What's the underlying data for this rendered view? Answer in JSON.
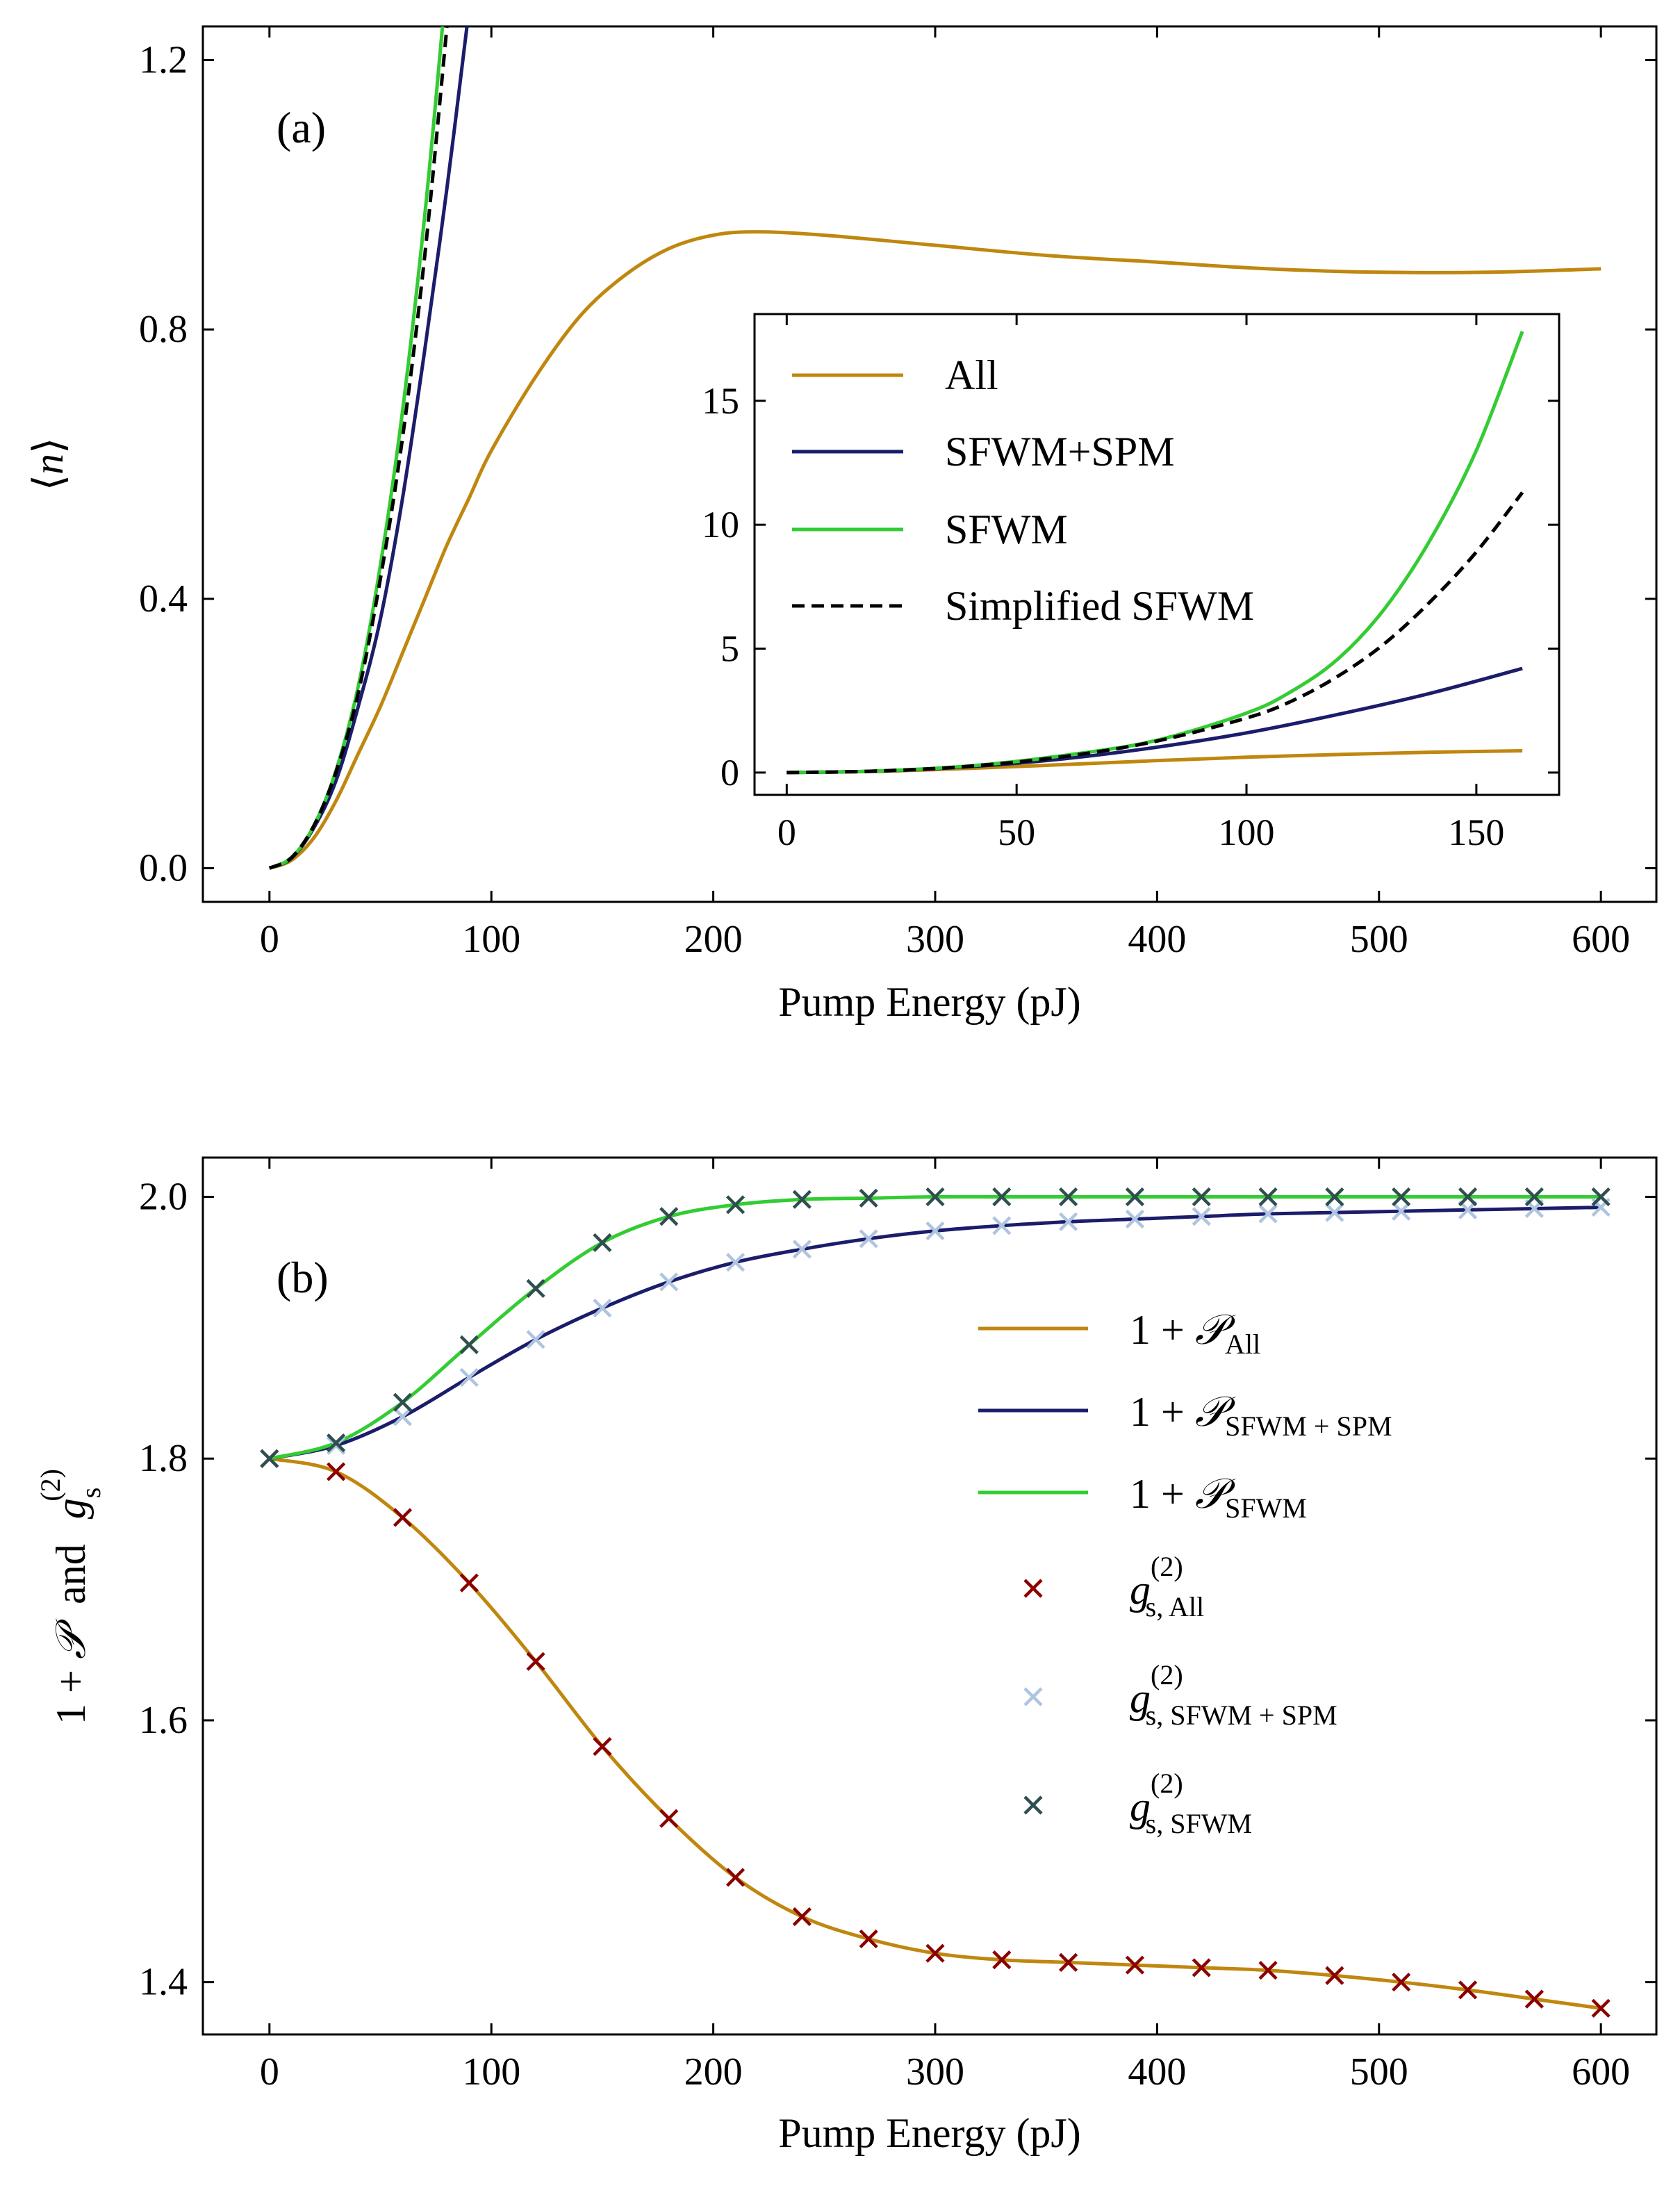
{
  "chart_data": [
    {
      "panel": "(a)",
      "type": "line",
      "xlabel": "Pump Energy (pJ)",
      "ylabel": "⟨n⟩",
      "xlim": [
        -30,
        625
      ],
      "ylim": [
        -0.05,
        1.25
      ],
      "xticks": [
        0,
        100,
        200,
        300,
        400,
        500,
        600
      ],
      "yticks": [
        0.0,
        0.4,
        0.8,
        1.2
      ],
      "ytick_labels": [
        "0.0",
        "0.4",
        "0.8",
        "1.2"
      ],
      "colors": {
        "All": "#C0870F",
        "SFWM+SPM": "#1B1D6B",
        "SFWM": "#33CC33",
        "Simplified SFWM": "#000000"
      },
      "series": [
        {
          "name": "All",
          "x": [
            0,
            10,
            20,
            30,
            40,
            50,
            60,
            70,
            80,
            90,
            100,
            120,
            140,
            160,
            180,
            200,
            220,
            250,
            300,
            350,
            400,
            450,
            500,
            550,
            600
          ],
          "y": [
            0,
            0.012,
            0.045,
            0.1,
            0.17,
            0.24,
            0.32,
            0.4,
            0.48,
            0.55,
            0.62,
            0.73,
            0.82,
            0.88,
            0.92,
            0.94,
            0.945,
            0.94,
            0.925,
            0.91,
            0.9,
            0.89,
            0.885,
            0.885,
            0.89
          ]
        },
        {
          "name": "SFWM+SPM",
          "x": [
            0,
            10,
            20,
            30,
            40,
            50,
            60,
            70,
            80,
            89
          ],
          "y": [
            0,
            0.015,
            0.06,
            0.13,
            0.24,
            0.37,
            0.55,
            0.77,
            1.01,
            1.25
          ]
        },
        {
          "name": "SFWM",
          "x": [
            0,
            10,
            20,
            30,
            40,
            50,
            60,
            70,
            78
          ],
          "y": [
            0,
            0.016,
            0.063,
            0.145,
            0.27,
            0.45,
            0.68,
            0.97,
            1.25
          ]
        },
        {
          "name": "Simplified SFWM",
          "x": [
            0,
            10,
            20,
            30,
            40,
            50,
            60,
            70,
            80
          ],
          "y": [
            0,
            0.016,
            0.063,
            0.143,
            0.26,
            0.43,
            0.64,
            0.91,
            1.25
          ]
        }
      ],
      "inset": {
        "xlim": [
          -7,
          168
        ],
        "ylim": [
          -0.9,
          18.5
        ],
        "xticks": [
          0,
          50,
          100,
          150
        ],
        "yticks": [
          0,
          5,
          10,
          15
        ],
        "legend": [
          "All",
          "SFWM+SPM",
          "SFWM",
          "Simplified SFWM"
        ],
        "series": [
          {
            "name": "All",
            "x": [
              0,
              20,
              40,
              60,
              80,
              100,
              120,
              140,
              160
            ],
            "y": [
              0,
              0.05,
              0.17,
              0.32,
              0.48,
              0.62,
              0.73,
              0.82,
              0.88
            ]
          },
          {
            "name": "SFWM+SPM",
            "x": [
              0,
              20,
              40,
              60,
              80,
              100,
              120,
              140,
              160
            ],
            "y": [
              0,
              0.06,
              0.24,
              0.55,
              1.01,
              1.6,
              2.35,
              3.2,
              4.2
            ]
          },
          {
            "name": "SFWM",
            "x": [
              0,
              20,
              40,
              60,
              80,
              100,
              110,
              120,
              130,
              140,
              150,
              160
            ],
            "y": [
              0,
              0.063,
              0.27,
              0.68,
              1.28,
              2.4,
              3.3,
              4.6,
              6.6,
              9.4,
              13.0,
              17.8
            ]
          },
          {
            "name": "Simplified SFWM",
            "x": [
              0,
              20,
              40,
              60,
              80,
              100,
              110,
              120,
              130,
              140,
              150,
              160
            ],
            "y": [
              0,
              0.063,
              0.26,
              0.64,
              1.25,
              2.2,
              2.9,
              3.9,
              5.2,
              6.9,
              8.9,
              11.3
            ]
          }
        ]
      }
    },
    {
      "panel": "(b)",
      "type": "line+scatter",
      "xlabel": "Pump Energy (pJ)",
      "ylabel": "1 + 𝒫  and  g_s^(2)",
      "xlim": [
        -30,
        625
      ],
      "ylim": [
        1.36,
        2.03
      ],
      "xticks": [
        0,
        100,
        200,
        300,
        400,
        500,
        600
      ],
      "yticks": [
        1.4,
        1.6,
        1.8,
        2.0
      ],
      "ytick_labels": [
        "1.4",
        "1.6",
        "1.8",
        "2.0"
      ],
      "colors": {
        "line_All": "#C0870F",
        "line_SFWM+SPM": "#1B1D6B",
        "line_SFWM": "#33CC33",
        "marker_All": "#8B0000",
        "marker_SFWM+SPM": "#AFC4E0",
        "marker_SFWM": "#2F4F4F"
      },
      "marker_x": [
        0,
        30,
        60,
        90,
        120,
        150,
        180,
        210,
        240,
        270,
        300,
        330,
        360,
        390,
        420,
        450,
        480,
        510,
        540,
        570,
        600
      ],
      "series": [
        {
          "name": "1+P_All",
          "values": [
            1.8,
            1.79,
            1.755,
            1.705,
            1.645,
            1.58,
            1.525,
            1.48,
            1.45,
            1.433,
            1.422,
            1.417,
            1.415,
            1.413,
            1.411,
            1.409,
            1.405,
            1.4,
            1.394,
            1.387,
            1.38
          ]
        },
        {
          "name": "1+P_SFWM+SPM",
          "values": [
            1.8,
            1.81,
            1.832,
            1.862,
            1.891,
            1.915,
            1.935,
            1.95,
            1.96,
            1.968,
            1.974,
            1.978,
            1.981,
            1.983,
            1.985,
            1.987,
            1.988,
            1.989,
            1.99,
            1.991,
            1.992
          ]
        },
        {
          "name": "1+P_SFWM",
          "values": [
            1.8,
            1.812,
            1.843,
            1.887,
            1.93,
            1.965,
            1.985,
            1.994,
            1.998,
            1.999,
            2.0,
            2.0,
            2.0,
            2.0,
            2.0,
            2.0,
            2.0,
            2.0,
            2.0,
            2.0,
            2.0
          ]
        }
      ],
      "legend": {
        "line_All": {
          "base": "1 + ",
          "sym": "𝒫",
          "sub": "All"
        },
        "line_SFWM_SPM": {
          "base": "1 + ",
          "sym": "𝒫",
          "sub": "SFWM + SPM"
        },
        "line_SFWM": {
          "base": "1 + ",
          "sym": "𝒫",
          "sub": "SFWM"
        },
        "marker_All": {
          "sym": "g",
          "sup": "(2)",
          "sub": "s, All"
        },
        "marker_SFWM_SPM": {
          "sym": "g",
          "sup": "(2)",
          "sub": "s, SFWM + SPM"
        },
        "marker_SFWM": {
          "sym": "g",
          "sup": "(2)",
          "sub": "s, SFWM"
        }
      }
    }
  ],
  "labels": {
    "panel_a": "(a)",
    "panel_b": "(b)",
    "xlabel_a": "Pump Energy (pJ)",
    "xlabel_b": "Pump Energy (pJ)",
    "ylabel_a_open": "⟨",
    "ylabel_a_var": "n",
    "ylabel_a_close": "⟩",
    "ylabel_b_part1": "1 + ",
    "ylabel_b_sym": "𝒫",
    "ylabel_b_and": "and",
    "ylabel_b_g": "g",
    "ylabel_b_sup": "(2)",
    "ylabel_b_sub": "s",
    "inset_legend": [
      "All",
      "SFWM+SPM",
      "SFWM",
      "Simplified SFWM"
    ]
  }
}
